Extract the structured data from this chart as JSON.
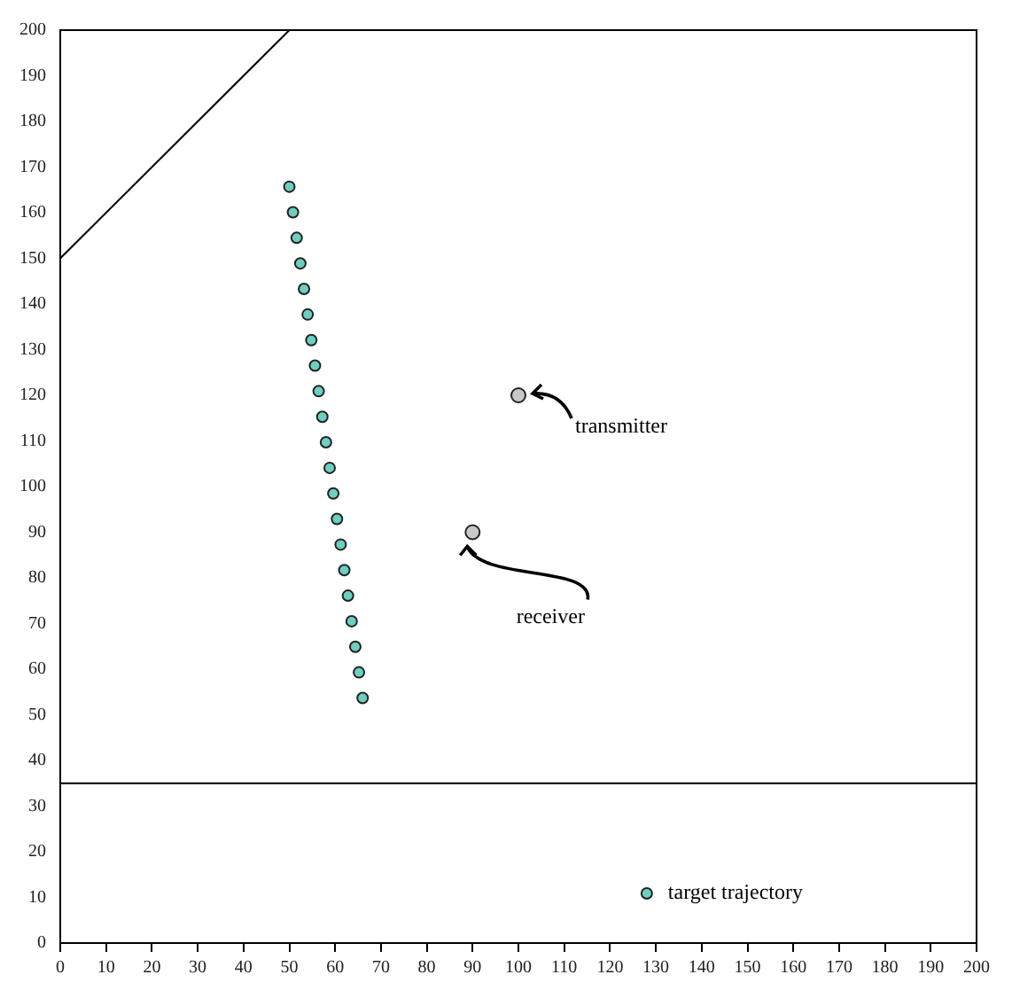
{
  "chart_data": {
    "type": "scatter",
    "xlim": [
      0,
      200
    ],
    "ylim": [
      0,
      200
    ],
    "xticks": [
      0,
      10,
      20,
      30,
      40,
      50,
      60,
      70,
      80,
      90,
      100,
      110,
      120,
      130,
      140,
      150,
      160,
      170,
      180,
      190,
      200
    ],
    "yticks": [
      0,
      10,
      20,
      30,
      40,
      50,
      60,
      70,
      80,
      90,
      100,
      110,
      120,
      130,
      140,
      150,
      160,
      170,
      180,
      190,
      200
    ],
    "grid": false,
    "legend": "bottom right",
    "marker": "circle",
    "series": [
      {
        "name": "target trajectory",
        "color": "#6ccfbf",
        "x": [
          50,
          50.8,
          51.6,
          52.4,
          53.2,
          54,
          54.8,
          55.6,
          56.4,
          57.2,
          58,
          58.8,
          59.6,
          60.4,
          61.2,
          62,
          62.8,
          63.6,
          64.4,
          65.2,
          66
        ],
        "values": [
          165.7,
          160.1,
          154.5,
          148.9,
          143.3,
          137.7,
          132.1,
          126.5,
          120.9,
          115.3,
          109.7,
          104.1,
          98.5,
          92.9,
          87.3,
          81.7,
          76.1,
          70.5,
          64.9,
          59.3,
          53.7
        ]
      },
      {
        "color": "#c8c8c8",
        "x": [
          100,
          90
        ],
        "values": [
          120,
          90
        ]
      },
      {
        "type": "line",
        "color": "#000000",
        "marker": "none",
        "x": [
          0,
          50
        ],
        "values": [
          150,
          200
        ]
      }
    ],
    "ref_lines": [
      {
        "axis": "y",
        "value": 35,
        "color": "#000000"
      }
    ],
    "annotations": [
      {
        "text": "transmitter",
        "x": 100,
        "y": 120
      },
      {
        "text": "receiver",
        "x": 90,
        "y": 90
      }
    ]
  }
}
